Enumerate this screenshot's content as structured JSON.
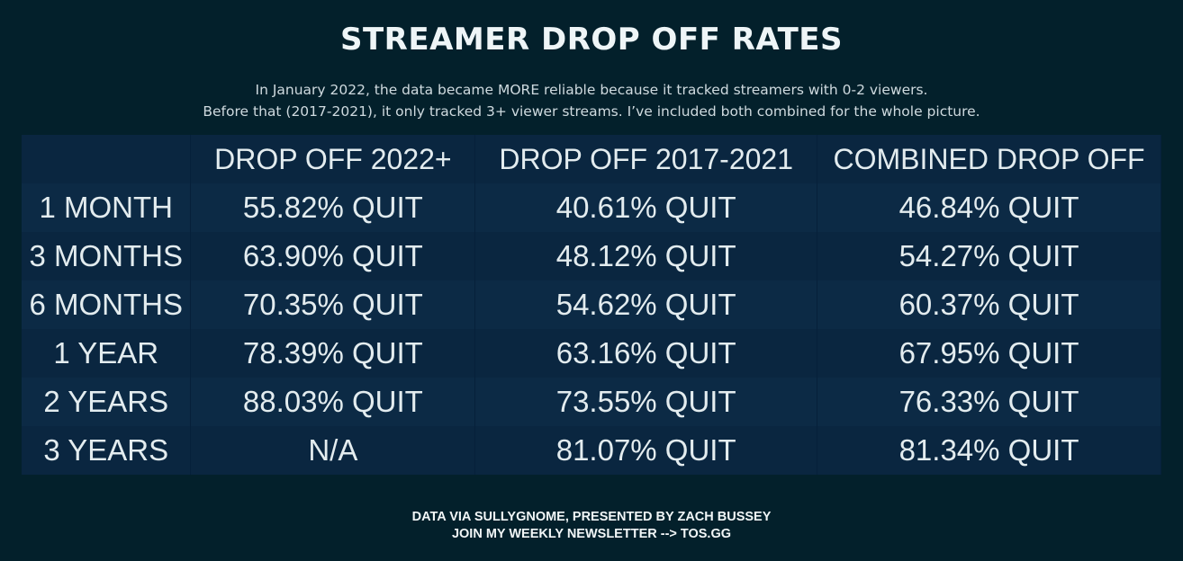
{
  "title": "STREAMER DROP OFF RATES",
  "subtitle": [
    "In January 2022, the data became MORE reliable because it tracked streamers with 0-2 viewers.",
    "Before that (2017-2021), it only tracked 3+ viewer streams. I’ve included both combined for the whole picture."
  ],
  "chart_data": {
    "type": "table",
    "columns": [
      "",
      "DROP OFF 2022+",
      "DROP OFF 2017-2021",
      "COMBINED DROP OFF"
    ],
    "rows": [
      [
        "1 MONTH",
        "55.82% QUIT",
        "40.61% QUIT",
        "46.84% QUIT"
      ],
      [
        "3 MONTHS",
        "63.90% QUIT",
        "48.12% QUIT",
        "54.27% QUIT"
      ],
      [
        "6 MONTHS",
        "70.35% QUIT",
        "54.62% QUIT",
        "60.37% QUIT"
      ],
      [
        "1 YEAR",
        "78.39% QUIT",
        "63.16% QUIT",
        "67.95% QUIT"
      ],
      [
        "2 YEARS",
        "88.03% QUIT",
        "73.55% QUIT",
        "76.33% QUIT"
      ],
      [
        "3 YEARS",
        "N/A",
        "81.07% QUIT",
        "81.34% QUIT"
      ]
    ]
  },
  "footer": [
    "DATA VIA SULLYGNOME, PRESENTED BY ZACH BUSSEY",
    "JOIN MY WEEKLY NEWSLETTER --> TOS.GG"
  ]
}
